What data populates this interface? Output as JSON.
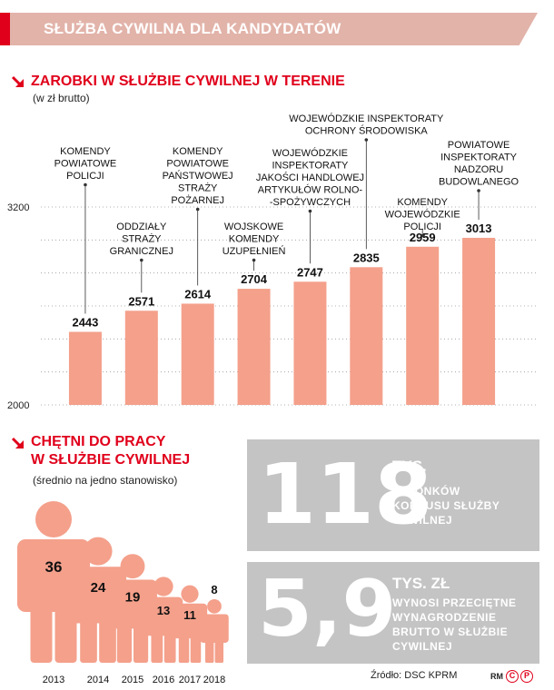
{
  "header": {
    "title": "SŁUŻBA CYWILNA DLA KANDYDATÓW"
  },
  "colors": {
    "accent": "#e0001b",
    "bar": "#f4a08b",
    "banner": "#e2b3a9",
    "box": "#c4c4c4"
  },
  "section1": {
    "title": "ZAROBKI W SŁUŻBIE CYWILNEJ W TERENIE",
    "subtitle": "(w zł brutto)"
  },
  "chart_data": [
    {
      "type": "bar",
      "title": "ZAROBKI W SŁUŻBIE CYWILNEJ W TERENIE",
      "subtitle": "(w zł brutto)",
      "categories": [
        "KOMENDY POWIATOWE POLICJI",
        "ODDZIAŁY STRAŻY GRANICZNEJ",
        "KOMENDY POWIATOWE PAŃSTWOWEJ STRAŻY POŻARNEJ",
        "WOJSKOWE KOMENDY UZUPEŁNIEŃ",
        "WOJEWÓDZKIE INSPEKTORATY JAKOŚCI HANDLOWEJ ARTYKUŁÓW ROLNO- -SPOŻYWCZYCH",
        "WOJEWÓDZKIE INSPEKTORATY OCHRONY ŚRODOWISKA",
        "KOMENDY WOJEWÓDZKIE POLICJI",
        "POWIATOWE INSPEKTORATY NADZORU BUDOWLANEGO"
      ],
      "category_lines": [
        [
          "KOMENDY",
          "POWIATOWE",
          "POLICJI"
        ],
        [
          "ODDZIAŁY",
          "STRAŻY",
          "GRANICZNEJ"
        ],
        [
          "KOMENDY",
          "POWIATOWE",
          "PAŃSTWOWEJ",
          "STRAŻY",
          "POŻARNEJ"
        ],
        [
          "WOJSKOWE",
          "KOMENDY",
          "UZUPEŁNIEŃ"
        ],
        [
          "WOJEWÓDZKIE",
          "INSPEKTORATY",
          "JAKOŚCI HANDLOWEJ",
          "ARTYKUŁÓW ROLNO-",
          "-SPOŻYWCZYCH"
        ],
        [
          "WOJEWÓDZKIE INSPEKTORATY",
          "OCHRONY ŚRODOWISKA"
        ],
        [
          "KOMENDY",
          "WOJEWÓDZKIE",
          "POLICJI"
        ],
        [
          "POWIATOWE",
          "INSPEKTORATY",
          "NADZORU",
          "BUDOWLANEGO"
        ]
      ],
      "values": [
        2443,
        2571,
        2614,
        2704,
        2747,
        2835,
        2959,
        3013
      ],
      "value_labels": [
        "2443",
        "2571",
        "2614",
        "2704",
        "2747",
        "2835",
        "2959",
        "3013"
      ],
      "ylim": [
        2000,
        3200
      ],
      "yticks": [
        2000,
        3200
      ],
      "ytick_labels": [
        "2000",
        "3200"
      ],
      "grid": true
    },
    {
      "type": "bar",
      "title": "CHĘTNI DO PRACY W SŁUŻBIE CYWILNEJ",
      "subtitle": "(średnio na jedno stanowisko)",
      "categories": [
        "2013",
        "2014",
        "2015",
        "2016",
        "2017",
        "2018"
      ],
      "values": [
        36,
        24,
        19,
        13,
        11,
        8
      ],
      "value_labels": [
        "36",
        "24",
        "19",
        "13",
        "11",
        "8"
      ]
    }
  ],
  "section2": {
    "title_lines": [
      "CHĘTNI DO PRACY",
      "W SŁUŻBIE CYWILNEJ"
    ],
    "subtitle": "(średnio na jedno stanowisko)"
  },
  "stats": [
    {
      "number": "118",
      "unit": "TYS.",
      "desc_lines": [
        "CZŁONKÓW",
        "KORPUSU SŁUŻBY",
        "CYWILNEJ"
      ]
    },
    {
      "number": "5,9",
      "unit": "TYS. ZŁ",
      "desc_lines": [
        "WYNOSI PRZECIĘTNE",
        "WYNAGRODZENIE",
        "BRUTTO W SŁUŻBIE",
        "CYWILNEJ"
      ]
    }
  ],
  "footer": {
    "source": "Źródło: DSC KPRM",
    "credit": "RM",
    "mark1": "C",
    "mark2": "P"
  }
}
